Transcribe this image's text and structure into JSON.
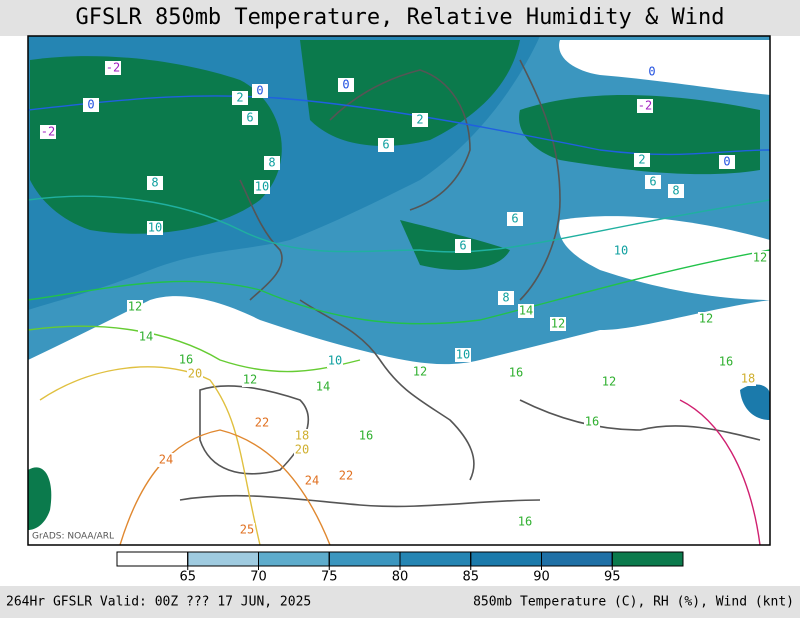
{
  "header": {
    "title": "GFSLR 850mb Temperature, Relative Humidity & Wind"
  },
  "map": {
    "credit": "GrADS: NOAA/ARL",
    "contour_labels": [
      -2,
      0,
      2,
      0,
      0,
      -2,
      6,
      8,
      8,
      10,
      10,
      2,
      6,
      2,
      6,
      0,
      8,
      -2,
      0,
      10,
      12,
      6,
      8,
      6,
      12,
      14,
      12,
      14,
      12,
      16,
      20,
      10,
      12,
      14,
      10,
      12,
      16,
      12,
      16,
      18,
      22,
      18,
      16,
      20,
      24,
      24,
      22,
      25,
      16,
      16
    ]
  },
  "colorbar": {
    "ticks": [
      65,
      70,
      75,
      80,
      85,
      90,
      95
    ],
    "colors": [
      "#ffffff",
      "#9fcbe0",
      "#5eaccc",
      "#3b96bf",
      "#2585b3",
      "#1b7aab",
      "#1f70a6",
      "#0b7a4c"
    ]
  },
  "footer": {
    "left": "264Hr GFSLR Valid: 00Z ??? 17 JUN, 2025",
    "right": "850mb Temperature (C), RH (%), Wind (knt)"
  }
}
